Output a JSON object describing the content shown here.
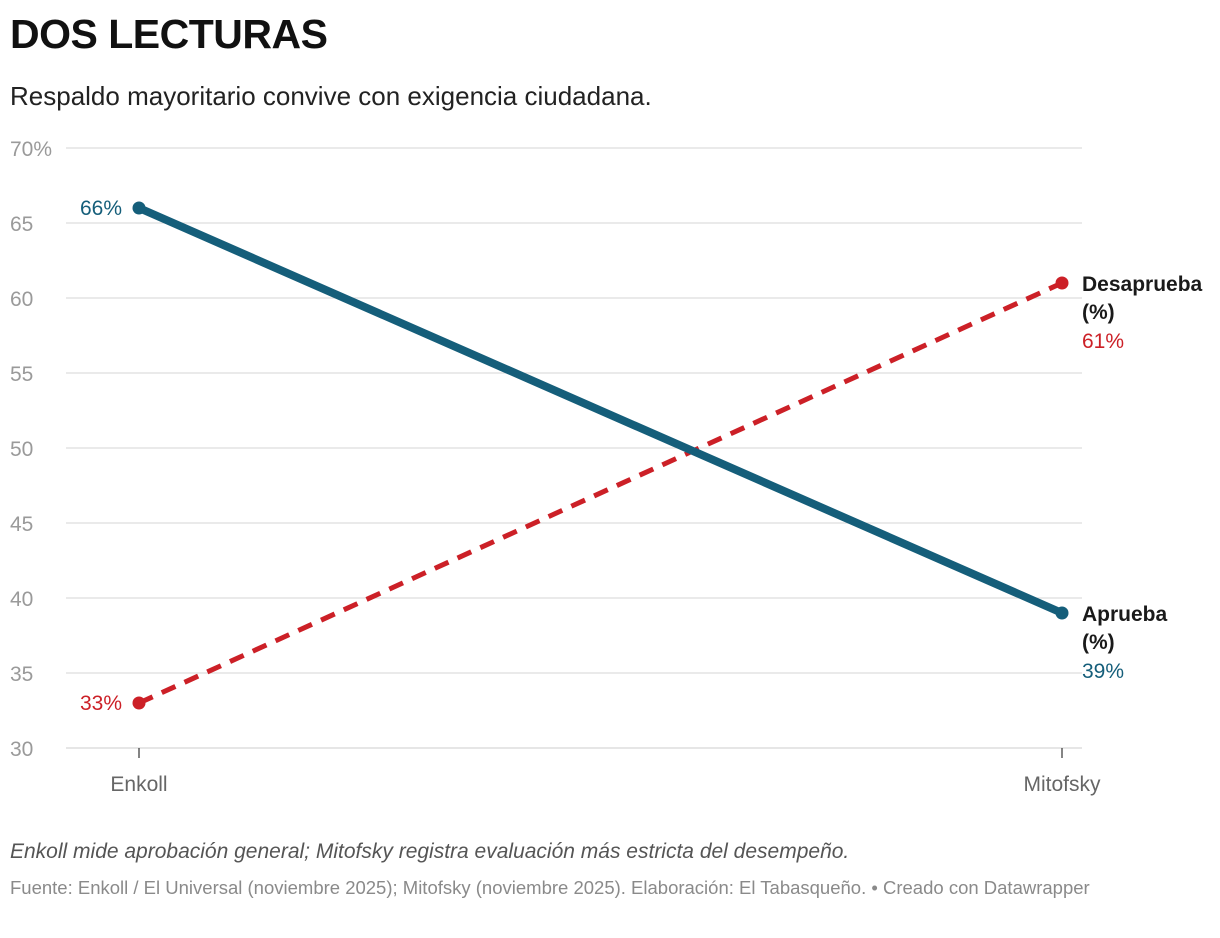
{
  "header": {
    "title": "DOS LECTURAS",
    "subtitle": "Respaldo mayoritario convive con exigencia ciudadana."
  },
  "footer": {
    "notes": "Enkoll mide aprobación general; Mitofsky registra evaluación más estricta del desempeño.",
    "source": "Fuente: Enkoll / El Universal (noviembre 2025); Mitofsky (noviembre 2025). Elaboración: El Tabasqueño. •",
    "credit": "Creado con Datawrapper"
  },
  "colors": {
    "aprueba": "#155e7a",
    "desaprueba": "#cc2027",
    "grid": "#dddddd",
    "tick_label": "#9a9a9a",
    "category_label": "#666666"
  },
  "chart_data": {
    "type": "line",
    "categories": [
      "Enkoll",
      "Mitofsky"
    ],
    "ylim": [
      30,
      70
    ],
    "yticks": [
      30,
      35,
      40,
      45,
      50,
      55,
      60,
      65,
      70
    ],
    "ytick_labels": [
      "30",
      "35",
      "40",
      "45",
      "50",
      "55",
      "60",
      "65",
      "70%"
    ],
    "grid": true,
    "series": [
      {
        "key": "aprueba",
        "name_line1": "Aprueba",
        "name_line2": "(%)",
        "values": [
          66,
          39
        ],
        "value_labels": [
          "66%",
          "39%"
        ],
        "style": "solid"
      },
      {
        "key": "desaprueba",
        "name_line1": "Desaprueba",
        "name_line2": "(%)",
        "values": [
          33,
          61
        ],
        "value_labels": [
          "33%",
          "61%"
        ],
        "style": "dashed"
      }
    ]
  }
}
